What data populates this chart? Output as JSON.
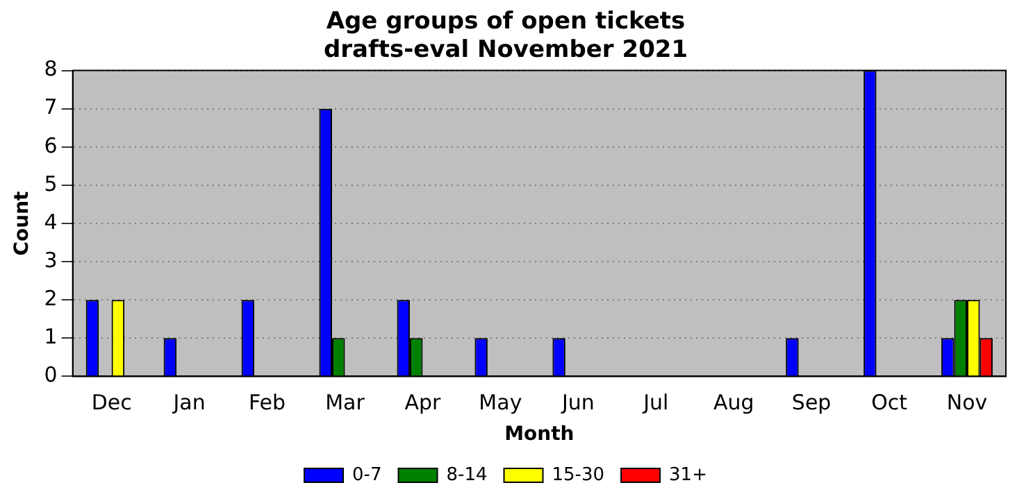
{
  "chart_data": {
    "type": "bar",
    "title": "Age groups of open tickets\ndrafts-eval November 2021",
    "xlabel": "Month",
    "ylabel": "Count",
    "categories": [
      "Dec",
      "Jan",
      "Feb",
      "Mar",
      "Apr",
      "May",
      "Jun",
      "Jul",
      "Aug",
      "Sep",
      "Oct",
      "Nov"
    ],
    "series": [
      {
        "name": "0-7",
        "color": "#0000ff",
        "values": [
          2,
          1,
          2,
          7,
          2,
          1,
          1,
          0,
          0,
          1,
          8,
          1
        ]
      },
      {
        "name": "8-14",
        "color": "#008000",
        "values": [
          0,
          0,
          0,
          1,
          1,
          0,
          0,
          0,
          0,
          0,
          0,
          2
        ]
      },
      {
        "name": "15-30",
        "color": "#ffff00",
        "values": [
          2,
          0,
          0,
          0,
          0,
          0,
          0,
          0,
          0,
          0,
          0,
          2
        ]
      },
      {
        "name": "31+",
        "color": "#ff0000",
        "values": [
          0,
          0,
          0,
          0,
          0,
          0,
          0,
          0,
          0,
          0,
          0,
          1
        ]
      }
    ],
    "ylim": [
      0,
      8
    ],
    "yticks": [
      0,
      1,
      2,
      3,
      4,
      5,
      6,
      7,
      8
    ],
    "grid": "y",
    "legend": "bottom"
  }
}
